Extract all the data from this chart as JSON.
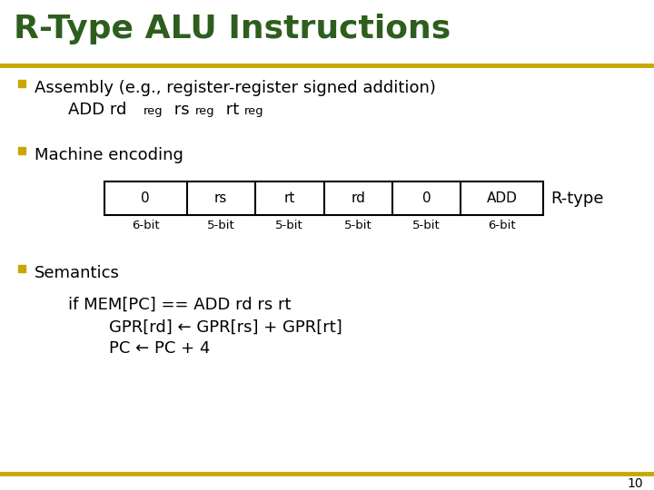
{
  "title": "R-Type ALU Instructions",
  "title_color": "#2E5E1E",
  "title_fontsize": 26,
  "separator_color": "#C8A800",
  "bullet_color": "#C8A800",
  "text_color": "#000000",
  "bg_color": "#FFFFFF",
  "bullet1_header": "Assembly (e.g., register-register signed addition)",
  "bullet2_header": "Machine encoding",
  "alu_fields": [
    "0",
    "rs",
    "rt",
    "rd",
    "0",
    "ADD"
  ],
  "alu_bits": [
    "6-bit",
    "5-bit",
    "5-bit",
    "5-bit",
    "5-bit",
    "6-bit"
  ],
  "alu_widths": [
    6,
    5,
    5,
    5,
    5,
    6
  ],
  "rtype_label": "R-type",
  "bullet3_header": "Semantics",
  "sem_line1": "if MEM[PC] == ADD rd rs rt",
  "sem_line2": "GPR[rd] ← GPR[rs] + GPR[rt]",
  "sem_line3": "PC ← PC + 4",
  "page_num": "10"
}
